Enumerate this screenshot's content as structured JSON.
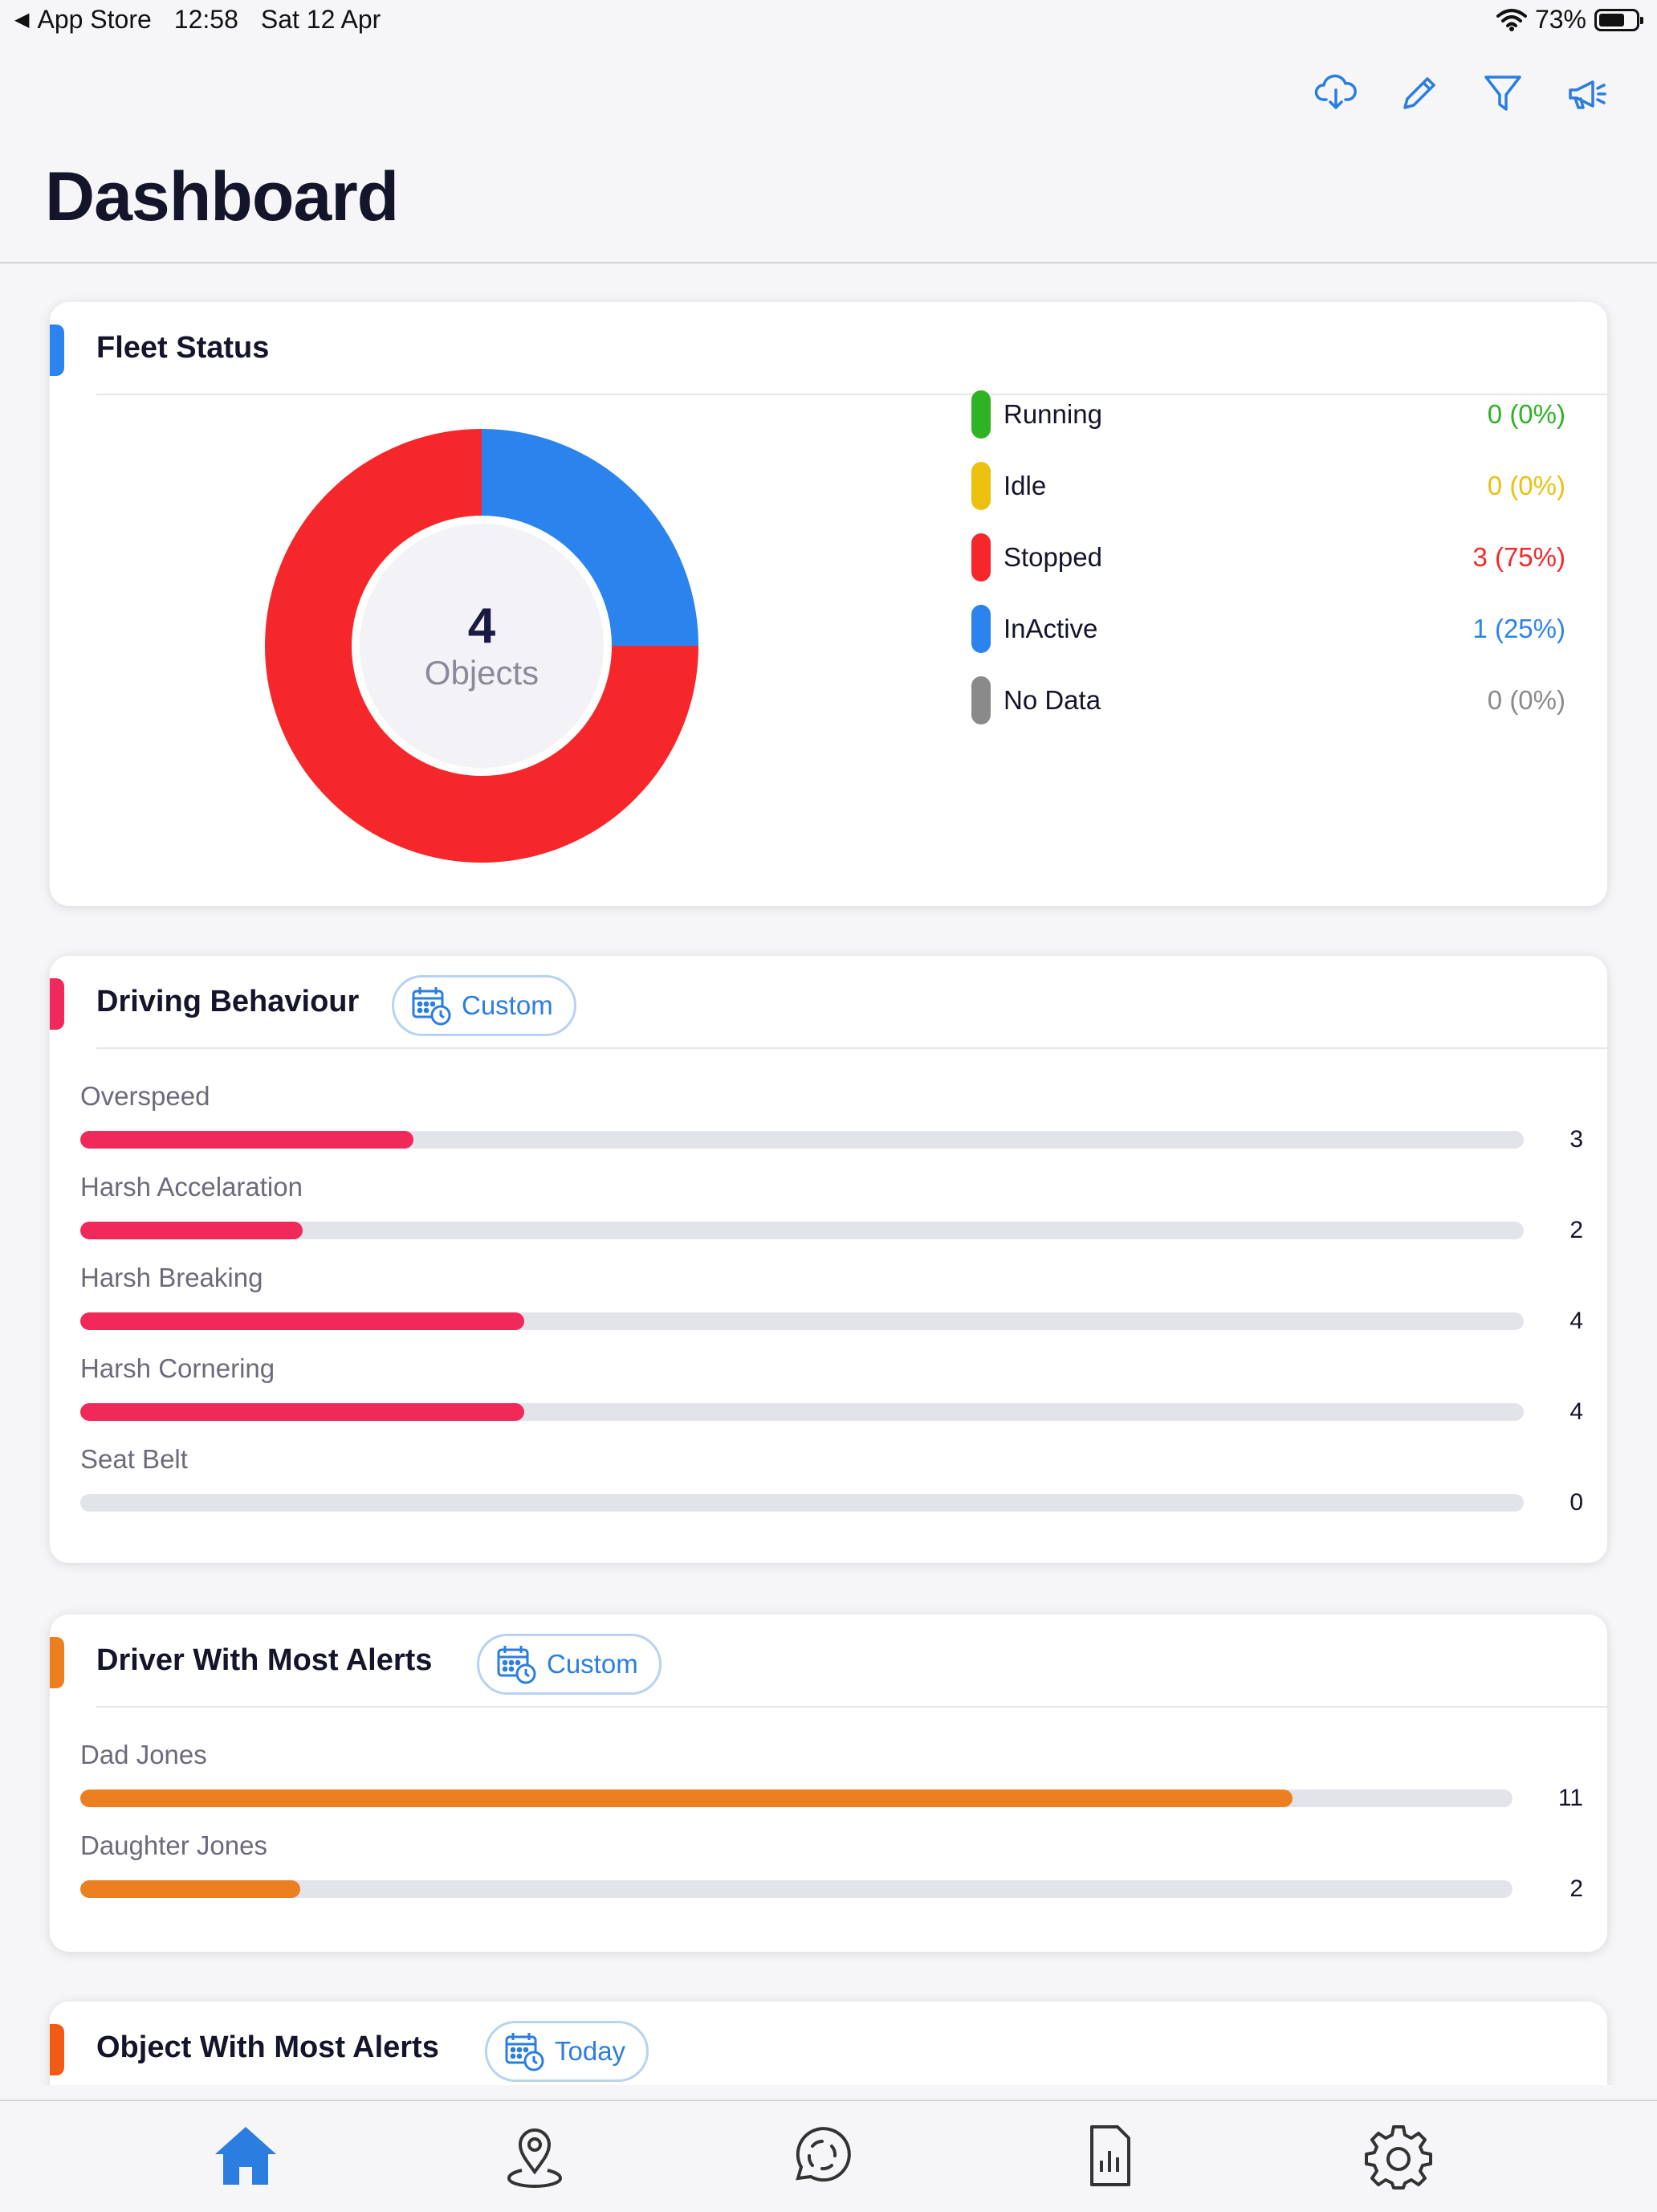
{
  "status_bar": {
    "back_label": "App Store",
    "time": "12:58",
    "date": "Sat 12 Apr",
    "battery": "73%",
    "battery_level": 0.73
  },
  "toolbar": {
    "icons": [
      "cloud-download-icon",
      "pencil-icon",
      "filter-icon",
      "megaphone-icon"
    ]
  },
  "header": {
    "title": "Dashboard"
  },
  "fleet_status": {
    "title": "Fleet Status",
    "total": "4",
    "total_caption": "Objects",
    "items": [
      {
        "label": "Running",
        "value": "0 (0%)",
        "count": 0,
        "color": "#2db324"
      },
      {
        "label": "Idle",
        "value": "0 (0%)",
        "count": 0,
        "color": "#ebc00f"
      },
      {
        "label": "Stopped",
        "value": "3 (75%)",
        "count": 3,
        "color": "#f5272a"
      },
      {
        "label": "InActive",
        "value": "1 (25%)",
        "count": 1,
        "color": "#2b83ee"
      },
      {
        "label": "No Data",
        "value": "0 (0%)",
        "count": 0,
        "color": "#8a8a8a"
      }
    ]
  },
  "driving_behaviour": {
    "title": "Driving Behaviour",
    "period": "Custom",
    "bar_color": "#f0295a",
    "scale_max": 13,
    "items": [
      {
        "label": "Overspeed",
        "value": "3",
        "count": 3
      },
      {
        "label": "Harsh Accelaration",
        "value": "2",
        "count": 2
      },
      {
        "label": "Harsh Breaking",
        "value": "4",
        "count": 4
      },
      {
        "label": "Harsh Cornering",
        "value": "4",
        "count": 4
      },
      {
        "label": "Seat Belt",
        "value": "0",
        "count": 0
      }
    ]
  },
  "driver_alerts": {
    "title": "Driver With Most Alerts",
    "period": "Custom",
    "bar_color": "#ec8021",
    "scale_max": 13,
    "items": [
      {
        "label": "Dad Jones",
        "value": "11",
        "count": 11
      },
      {
        "label": "Daughter Jones",
        "value": "2",
        "count": 2
      }
    ]
  },
  "object_alerts": {
    "title": "Object With Most Alerts",
    "period": "Today"
  },
  "tab_bar": {
    "active_color": "#2b7de0",
    "tabs": [
      "home-icon",
      "map-pin-icon",
      "live-tracking-icon",
      "reports-icon",
      "settings-icon"
    ]
  }
}
